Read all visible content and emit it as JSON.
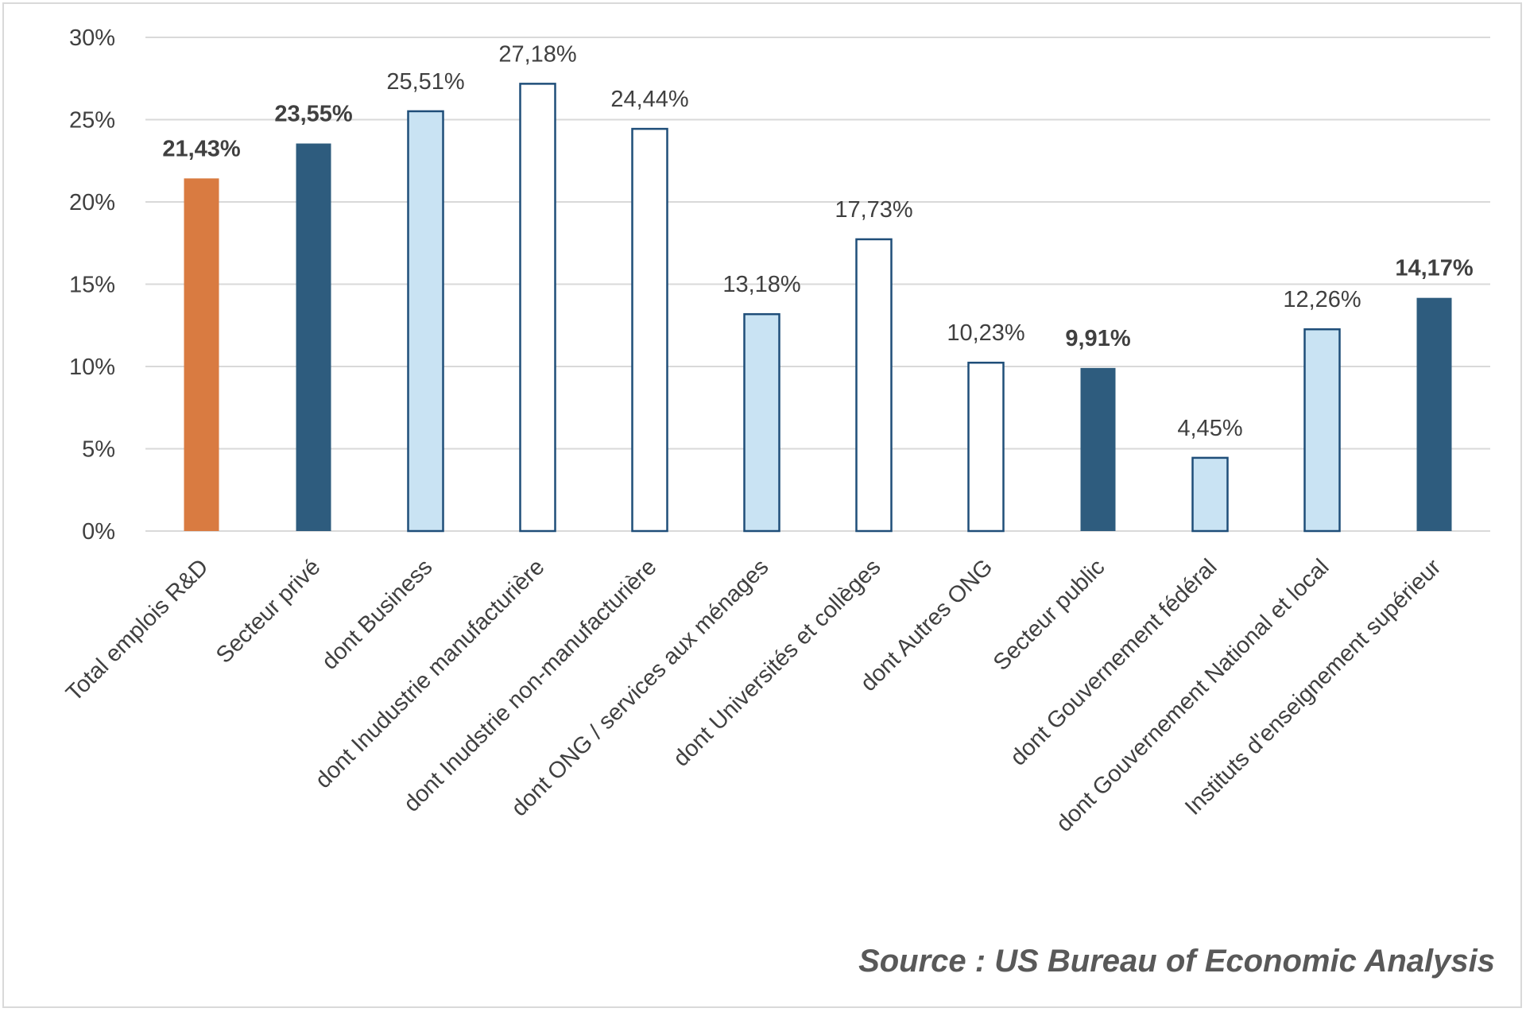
{
  "chart_data": {
    "type": "bar",
    "title": "",
    "xlabel": "",
    "ylabel": "",
    "ylim": [
      0,
      30
    ],
    "y_ticks": [
      "0%",
      "5%",
      "10%",
      "15%",
      "20%",
      "25%",
      "30%"
    ],
    "y_tick_values": [
      0,
      5,
      10,
      15,
      20,
      25,
      30
    ],
    "grid": true,
    "legend": "none",
    "categories": [
      "Total emplois R&D",
      "Secteur privé",
      "dont Business",
      "dont Inudustrie manufacturière",
      "dont Inudstrie non-manufacturière",
      "dont ONG / services aux ménages",
      "dont Universités et collèges",
      "dont Autres ONG",
      "Secteur public",
      "dont Gouvernement fédéral",
      "dont Gouvernement National et local",
      "Instituts d'enseignement supérieur"
    ],
    "values": [
      21.43,
      23.55,
      25.51,
      27.18,
      24.44,
      13.18,
      17.73,
      10.23,
      9.91,
      4.45,
      12.26,
      14.17
    ],
    "value_labels": [
      "21,43%",
      "23,55%",
      "25,51%",
      "27,18%",
      "24,44%",
      "13,18%",
      "17,73%",
      "10,23%",
      "9,91%",
      "4,45%",
      "12,26%",
      "14,17%"
    ],
    "label_bold": [
      true,
      true,
      false,
      false,
      false,
      false,
      false,
      false,
      true,
      false,
      false,
      true
    ],
    "bar_styles": [
      "total",
      "sector",
      "sub",
      "subsub",
      "subsub",
      "sub",
      "subsub",
      "subsub",
      "sector",
      "sub",
      "sub",
      "sector"
    ]
  },
  "colors": {
    "total": "#D97B41",
    "sector": "#2E5C7E",
    "sub": "#C9E3F3",
    "subsub": "#FFFFFF",
    "outline": "#1F4E79",
    "grid": "#D9D9D9",
    "text": "#404040",
    "source": "#595959"
  },
  "source": "Source : US Bureau of Economic Analysis"
}
